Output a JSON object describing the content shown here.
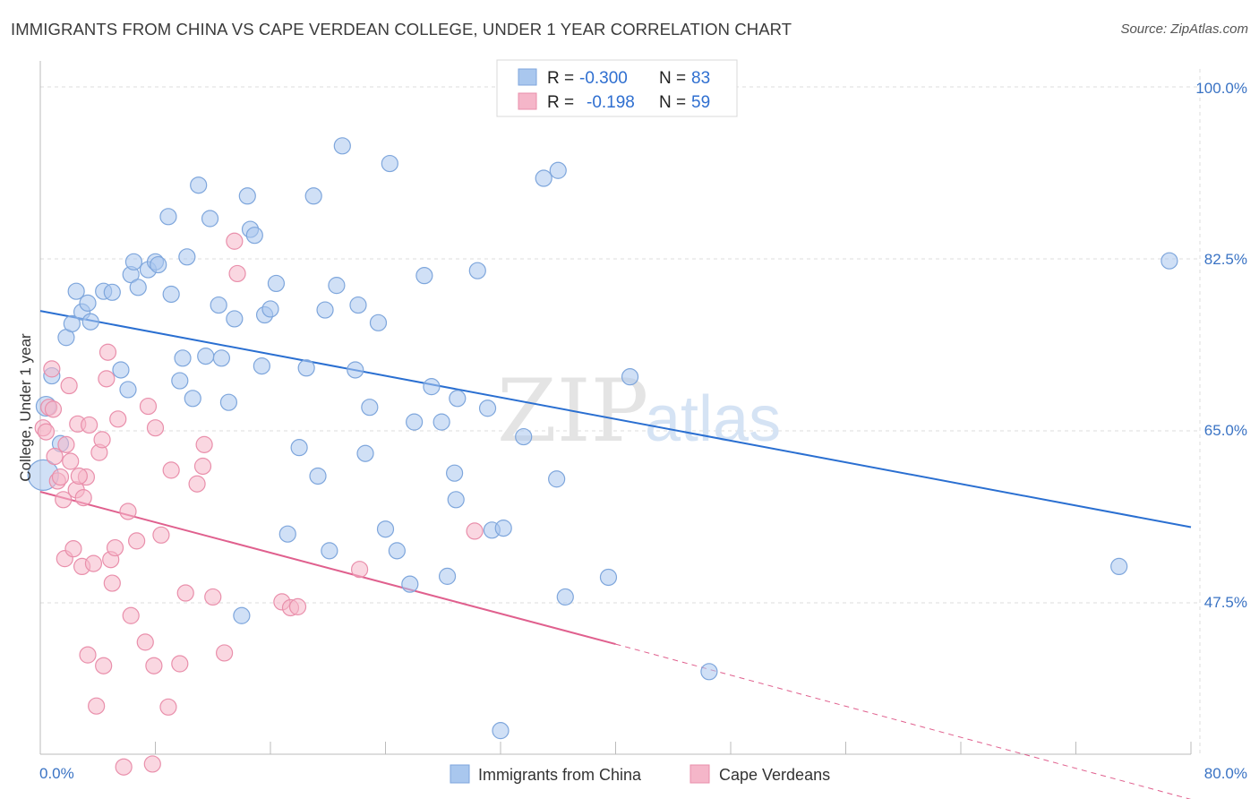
{
  "title": "IMMIGRANTS FROM CHINA VS CAPE VERDEAN COLLEGE, UNDER 1 YEAR CORRELATION CHART",
  "source": "Source: ZipAtlas.com",
  "watermark": {
    "part1": "ZIP",
    "part2": "atlas"
  },
  "colors": {
    "blue_fill": "#a9c7ee",
    "blue_stroke": "#7ea6dc",
    "blue_line": "#2a6fd1",
    "pink_fill": "#f5b6c9",
    "pink_stroke": "#e98fab",
    "pink_line": "#e0608e",
    "tick_text": "#3a73c4",
    "grid": "#dcdcdc"
  },
  "legend": {
    "rows": [
      {
        "r_label": "R =",
        "r_value": "-0.300",
        "n_label": "N =",
        "n_value": "83"
      },
      {
        "r_label": "R =",
        "r_value": "-0.198",
        "n_label": "N =",
        "n_value": "59"
      }
    ]
  },
  "chart_data": {
    "type": "scatter",
    "title": "IMMIGRANTS FROM CHINA VS CAPE VERDEAN COLLEGE, UNDER 1 YEAR CORRELATION CHART",
    "xlabel": "",
    "ylabel": "College, Under 1 year",
    "xlim": [
      0,
      80
    ],
    "ylim": [
      31,
      103
    ],
    "x_tick_labels": [
      "0.0%",
      "80.0%"
    ],
    "y_ticks": [
      100.0,
      82.5,
      65.0,
      47.5
    ],
    "y_tick_labels": [
      "100.0%",
      "82.5%",
      "65.0%",
      "47.5%"
    ],
    "grid": true,
    "legend_position": "top-center",
    "series": [
      {
        "name": "Immigrants from China",
        "color": "#a9c7ee",
        "trend": {
          "x": [
            0,
            80
          ],
          "y": [
            77.2,
            55.2
          ],
          "dashed_from": null
        },
        "points": [
          [
            0.2,
            60.5
          ],
          [
            0.4,
            67.5
          ],
          [
            0.8,
            70.6
          ],
          [
            1.4,
            63.7
          ],
          [
            1.8,
            74.5
          ],
          [
            2.2,
            75.9
          ],
          [
            2.5,
            79.2
          ],
          [
            2.9,
            77.1
          ],
          [
            3.3,
            78.0
          ],
          [
            3.5,
            76.1
          ],
          [
            4.4,
            79.2
          ],
          [
            5.0,
            79.1
          ],
          [
            5.6,
            71.2
          ],
          [
            6.1,
            69.2
          ],
          [
            6.3,
            80.9
          ],
          [
            6.5,
            82.2
          ],
          [
            6.8,
            79.6
          ],
          [
            7.5,
            81.4
          ],
          [
            8.0,
            82.2
          ],
          [
            8.2,
            81.9
          ],
          [
            8.9,
            86.8
          ],
          [
            9.1,
            78.9
          ],
          [
            9.7,
            70.1
          ],
          [
            9.9,
            72.4
          ],
          [
            10.2,
            82.7
          ],
          [
            10.6,
            68.3
          ],
          [
            11.0,
            90.0
          ],
          [
            11.5,
            72.6
          ],
          [
            11.8,
            86.6
          ],
          [
            12.4,
            77.8
          ],
          [
            12.6,
            72.4
          ],
          [
            13.1,
            67.9
          ],
          [
            13.5,
            76.4
          ],
          [
            14.0,
            46.2
          ],
          [
            14.4,
            88.9
          ],
          [
            14.6,
            85.5
          ],
          [
            14.9,
            84.9
          ],
          [
            15.4,
            71.6
          ],
          [
            15.6,
            76.8
          ],
          [
            16.0,
            77.4
          ],
          [
            16.4,
            80.0
          ],
          [
            17.2,
            54.5
          ],
          [
            18.0,
            63.3
          ],
          [
            18.5,
            71.4
          ],
          [
            19.0,
            88.9
          ],
          [
            19.3,
            60.4
          ],
          [
            19.8,
            77.3
          ],
          [
            20.1,
            52.8
          ],
          [
            20.6,
            79.8
          ],
          [
            21.0,
            94.0
          ],
          [
            21.9,
            71.2
          ],
          [
            22.1,
            77.8
          ],
          [
            22.6,
            62.7
          ],
          [
            22.9,
            67.4
          ],
          [
            23.5,
            76.0
          ],
          [
            24.3,
            92.2
          ],
          [
            24.8,
            52.8
          ],
          [
            25.7,
            49.4
          ],
          [
            26.0,
            65.9
          ],
          [
            26.7,
            80.8
          ],
          [
            27.2,
            69.5
          ],
          [
            27.9,
            65.9
          ],
          [
            28.3,
            50.2
          ],
          [
            28.8,
            60.7
          ],
          [
            28.9,
            58.0
          ],
          [
            30.4,
            81.3
          ],
          [
            31.1,
            67.3
          ],
          [
            31.4,
            54.9
          ],
          [
            32.2,
            55.1
          ],
          [
            33.6,
            64.4
          ],
          [
            35.0,
            90.7
          ],
          [
            35.5,
            98.6
          ],
          [
            35.9,
            60.1
          ],
          [
            36.0,
            91.5
          ],
          [
            36.5,
            48.1
          ],
          [
            39.5,
            50.1
          ],
          [
            41.0,
            70.5
          ],
          [
            46.5,
            40.5
          ],
          [
            32.0,
            34.5
          ],
          [
            75.0,
            51.2
          ],
          [
            78.5,
            82.3
          ],
          [
            29.0,
            68.3
          ],
          [
            24.0,
            55.0
          ]
        ]
      },
      {
        "name": "Cape Verdeans",
        "color": "#f5b6c9",
        "trend": {
          "x": [
            0,
            40,
            80
          ],
          "y": [
            58.8,
            43.3,
            27.5
          ],
          "dashed_from": 40
        },
        "points": [
          [
            0.2,
            65.3
          ],
          [
            0.4,
            64.9
          ],
          [
            0.6,
            67.4
          ],
          [
            0.8,
            71.3
          ],
          [
            0.9,
            67.2
          ],
          [
            1.0,
            62.4
          ],
          [
            1.2,
            59.9
          ],
          [
            1.4,
            60.3
          ],
          [
            1.6,
            58.0
          ],
          [
            1.7,
            52.0
          ],
          [
            1.8,
            63.6
          ],
          [
            2.0,
            69.6
          ],
          [
            2.1,
            61.9
          ],
          [
            2.3,
            53.0
          ],
          [
            2.5,
            59.0
          ],
          [
            2.6,
            65.7
          ],
          [
            2.9,
            51.2
          ],
          [
            3.0,
            58.2
          ],
          [
            3.2,
            60.3
          ],
          [
            3.3,
            42.2
          ],
          [
            3.4,
            65.6
          ],
          [
            3.7,
            51.5
          ],
          [
            3.9,
            37.0
          ],
          [
            4.1,
            62.8
          ],
          [
            4.3,
            64.1
          ],
          [
            4.4,
            41.1
          ],
          [
            4.6,
            70.3
          ],
          [
            4.7,
            73.0
          ],
          [
            4.9,
            51.9
          ],
          [
            5.0,
            49.5
          ],
          [
            5.2,
            53.1
          ],
          [
            5.4,
            66.2
          ],
          [
            5.8,
            30.8
          ],
          [
            6.1,
            56.8
          ],
          [
            6.3,
            46.2
          ],
          [
            6.7,
            53.8
          ],
          [
            7.3,
            43.5
          ],
          [
            7.5,
            67.5
          ],
          [
            7.8,
            31.1
          ],
          [
            7.9,
            41.1
          ],
          [
            8.0,
            65.3
          ],
          [
            8.4,
            54.4
          ],
          [
            8.9,
            36.9
          ],
          [
            9.1,
            61.0
          ],
          [
            9.7,
            41.3
          ],
          [
            10.1,
            48.5
          ],
          [
            10.9,
            59.6
          ],
          [
            11.3,
            61.4
          ],
          [
            11.4,
            63.6
          ],
          [
            12.0,
            48.1
          ],
          [
            12.8,
            42.4
          ],
          [
            13.5,
            84.3
          ],
          [
            13.7,
            81.0
          ],
          [
            16.8,
            47.6
          ],
          [
            17.4,
            47.0
          ],
          [
            17.9,
            47.1
          ],
          [
            22.2,
            50.9
          ],
          [
            30.2,
            54.8
          ],
          [
            2.7,
            60.4
          ]
        ]
      }
    ]
  }
}
